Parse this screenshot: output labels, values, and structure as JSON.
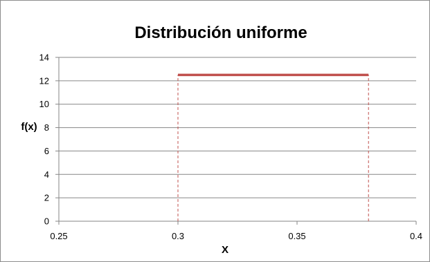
{
  "chart_data": {
    "type": "line",
    "title": "Distribución uniforme",
    "xlabel": "X",
    "ylabel": "f(x)",
    "xlim": [
      0.25,
      0.4
    ],
    "ylim": [
      0,
      14
    ],
    "x_ticks": [
      0.25,
      0.3,
      0.35,
      0.4
    ],
    "x_tick_labels": [
      "0.25",
      "0.3",
      "0.35",
      "0.4"
    ],
    "y_ticks": [
      0,
      2,
      4,
      6,
      8,
      10,
      12,
      14
    ],
    "y_tick_labels": [
      "0",
      "2",
      "4",
      "6",
      "8",
      "10",
      "12",
      "14"
    ],
    "grid": "horizontal",
    "legend": "none",
    "series": [
      {
        "x": [
          0.3,
          0.38
        ],
        "y": [
          12.5,
          12.5
        ],
        "color": "#c0504d",
        "style": "solid"
      }
    ],
    "guides": [
      {
        "x": [
          0.3,
          0.3
        ],
        "y": [
          0,
          12.5
        ],
        "color": "#c0504d",
        "style": "dashed"
      },
      {
        "x": [
          0.38,
          0.38
        ],
        "y": [
          0,
          12.5
        ],
        "color": "#c0504d",
        "style": "dashed"
      }
    ],
    "colors": {
      "grid": "#868686",
      "axis": "#868686",
      "line": "#c0504d"
    }
  }
}
